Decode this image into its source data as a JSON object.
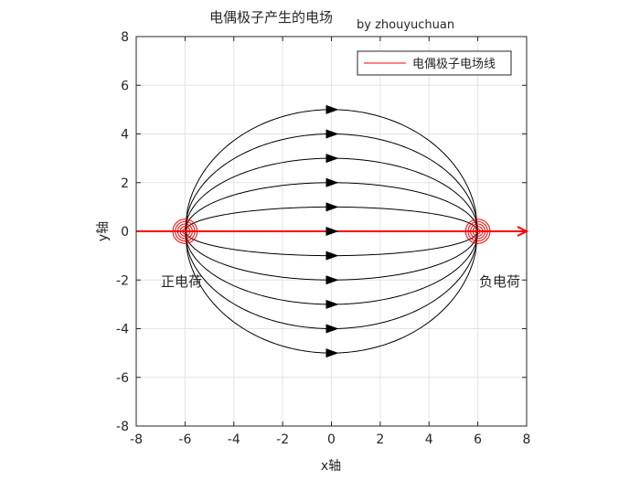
{
  "chart_data": {
    "type": "line",
    "title": "电偶极子产生的电场",
    "subtitle": "by zhouyuchuan",
    "xlabel": "x轴",
    "ylabel": "y轴",
    "xlim": [
      -8,
      8
    ],
    "ylim": [
      -8,
      8
    ],
    "xticks": [
      -8,
      -6,
      -4,
      -2,
      0,
      2,
      4,
      6,
      8
    ],
    "yticks": [
      -8,
      -6,
      -4,
      -2,
      0,
      2,
      4,
      6,
      8
    ],
    "grid": true,
    "legend": {
      "position": "top-right",
      "entries": [
        "电偶极子电场线"
      ]
    },
    "charges": [
      {
        "label": "正电荷",
        "x": -6,
        "y": 0
      },
      {
        "label": "负电荷",
        "x": 6,
        "y": 0
      }
    ],
    "field_lines": {
      "color": "#000000",
      "from": [
        -6,
        0
      ],
      "to": [
        6,
        0
      ],
      "apex_y": [
        5,
        4,
        3,
        2,
        1,
        0,
        -1,
        -2,
        -3,
        -4,
        -5
      ],
      "arrow_x": 0
    },
    "legend_line": {
      "name": "电偶极子电场线",
      "color": "#ff0000",
      "x": [
        -8,
        8
      ],
      "y": [
        0,
        0
      ]
    },
    "charge_circle_radii": [
      0.1,
      0.2,
      0.3,
      0.4,
      0.5
    ],
    "charge_color": "#ff0000"
  }
}
